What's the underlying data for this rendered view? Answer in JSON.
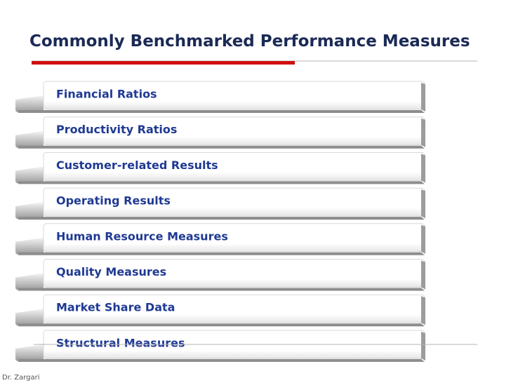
{
  "header": {
    "title": "Commonly Benchmarked Performance Measures"
  },
  "items": [
    "Financial Ratios",
    "Productivity Ratios",
    "Customer-related Results",
    "Operating Results",
    "Human Resource Measures",
    "Quality Measures",
    "Market Share Data",
    "Structural Measures"
  ],
  "footer": {
    "author": "Dr. Zargari"
  }
}
